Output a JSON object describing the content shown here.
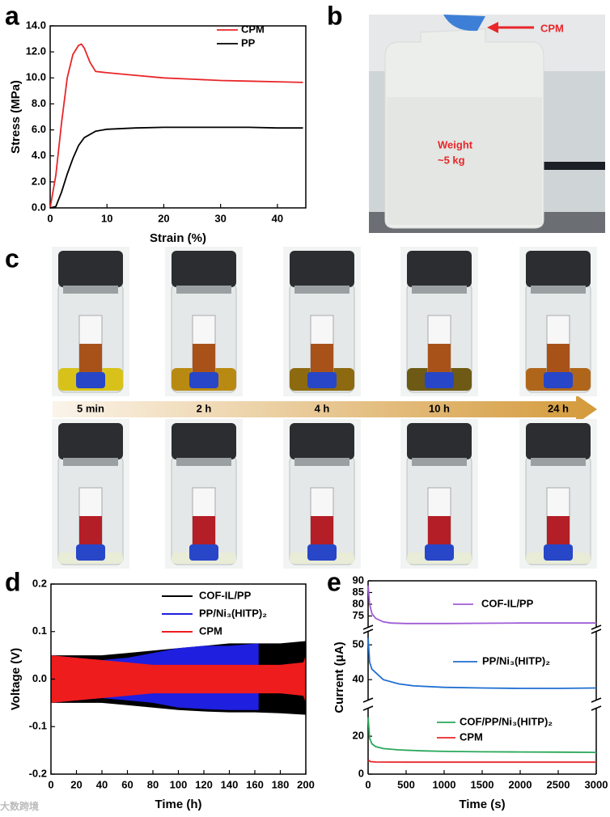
{
  "panel_labels": [
    "a",
    "b",
    "c",
    "d",
    "e"
  ],
  "photo_b": {
    "arrow_label": "CPM",
    "weight_label": [
      "Weight",
      "~5 kg"
    ]
  },
  "photo_c": {
    "times": [
      "5 min",
      "2 h",
      "4 h",
      "10 h",
      "24 h"
    ]
  },
  "watermark": "大数跨境",
  "chart_data": [
    {
      "type": "line",
      "xlabel": "Strain (%)",
      "ylabel": "Stress (MPa)",
      "xlim": [
        0,
        45
      ],
      "xticks": [
        0,
        10,
        20,
        30,
        40
      ],
      "ylim": [
        0,
        14
      ],
      "yticks": [
        {
          "value": 0,
          "label": "0.0"
        },
        {
          "value": 2,
          "label": "2.0"
        },
        {
          "value": 4,
          "label": "4.0"
        },
        {
          "value": 6,
          "label": "6.0"
        },
        {
          "value": 8,
          "label": "8.0"
        },
        {
          "value": 10,
          "label": "10.0"
        },
        {
          "value": 12,
          "label": "12.0"
        },
        {
          "value": 14,
          "label": "14.0"
        }
      ],
      "legend": "upper right",
      "series": [
        {
          "name": "CPM",
          "color": "#e8262a",
          "x": [
            0,
            1,
            2,
            3,
            4,
            5,
            5.5,
            6,
            7,
            8,
            10,
            15,
            20,
            25,
            30,
            35,
            40,
            44.5
          ],
          "values": [
            0,
            2.5,
            6.5,
            10,
            11.8,
            12.5,
            12.6,
            12.3,
            11.2,
            10.5,
            10.4,
            10.2,
            10.0,
            9.9,
            9.8,
            9.75,
            9.7,
            9.65
          ]
        },
        {
          "name": "PP",
          "color": "#000000",
          "x": [
            0,
            1,
            2,
            3,
            4,
            5,
            6,
            8,
            10,
            15,
            20,
            25,
            30,
            35,
            40,
            44.5
          ],
          "values": [
            0,
            0.1,
            1.2,
            2.6,
            3.8,
            4.8,
            5.4,
            5.9,
            6.05,
            6.15,
            6.2,
            6.2,
            6.2,
            6.2,
            6.15,
            6.15
          ]
        }
      ]
    },
    {
      "type": "envelope",
      "xlabel": "Time (h)",
      "ylabel": "Voltage (V)",
      "xlim": [
        0,
        200
      ],
      "xticks": [
        0,
        20,
        40,
        60,
        80,
        100,
        120,
        140,
        160,
        180,
        200
      ],
      "ylim": [
        -0.2,
        0.2
      ],
      "yticks": [
        -0.2,
        -0.1,
        {
          "value": 0,
          "label": "0.0"
        },
        0.1,
        0.2
      ],
      "legend": "upper center",
      "series": [
        {
          "name": "COF-IL/PP",
          "color": "#000000",
          "x": [
            0,
            20,
            40,
            60,
            80,
            100,
            120,
            140,
            160,
            180,
            200
          ],
          "upper": [
            0.05,
            0.05,
            0.05,
            0.055,
            0.06,
            0.065,
            0.07,
            0.075,
            0.075,
            0.075,
            0.08
          ],
          "lower": [
            -0.05,
            -0.05,
            -0.05,
            -0.055,
            -0.06,
            -0.065,
            -0.068,
            -0.07,
            -0.07,
            -0.072,
            -0.075
          ]
        },
        {
          "name": "PP/Ni₃(HITP)₂",
          "color": "#1f1fe0",
          "x": [
            0,
            20,
            40,
            60,
            80,
            100,
            120,
            140,
            163
          ],
          "upper": [
            0.05,
            0.045,
            0.04,
            0.045,
            0.055,
            0.065,
            0.07,
            0.07,
            0.075
          ],
          "lower": [
            -0.05,
            -0.045,
            -0.04,
            -0.045,
            -0.05,
            -0.06,
            -0.063,
            -0.065,
            -0.065
          ]
        },
        {
          "name": "CPM",
          "color": "#ee1c1c",
          "x": [
            0,
            20,
            40,
            60,
            80,
            100,
            120,
            140,
            160,
            180,
            198,
            200
          ],
          "upper": [
            0.05,
            0.045,
            0.04,
            0.035,
            0.03,
            0.03,
            0.03,
            0.03,
            0.03,
            0.03,
            0.035,
            0.05
          ],
          "lower": [
            -0.05,
            -0.045,
            -0.04,
            -0.035,
            -0.03,
            -0.03,
            -0.03,
            -0.03,
            -0.03,
            -0.03,
            -0.035,
            -0.05
          ]
        }
      ]
    },
    {
      "type": "broken-line",
      "xlabel": "Time (s)",
      "ylabel": "Current (μA)",
      "xlim": [
        0,
        3000
      ],
      "xticks": [
        0,
        500,
        1000,
        1500,
        2000,
        2500,
        3000
      ],
      "ylim_segments": [
        [
          0,
          35
        ],
        [
          34,
          54
        ],
        [
          70,
          90
        ]
      ],
      "yticks": [
        0,
        20,
        40,
        50,
        75,
        80,
        85,
        90
      ],
      "series": [
        {
          "name": "COF-IL/PP",
          "color": "#a05bd6",
          "x": [
            0,
            20,
            50,
            100,
            200,
            300,
            500,
            1000,
            1500,
            2000,
            2500,
            3000
          ],
          "values": [
            88,
            80,
            76,
            74,
            72.5,
            72,
            71.8,
            71.8,
            71.9,
            72,
            72,
            72
          ]
        },
        {
          "name": "PP/Ni₃(HITP)₂",
          "color": "#1f6fd1",
          "x": [
            0,
            20,
            50,
            100,
            200,
            400,
            600,
            1000,
            1500,
            2000,
            2500,
            3000
          ],
          "values": [
            52,
            45,
            43,
            42,
            40,
            38.8,
            38.2,
            37.8,
            37.6,
            37.5,
            37.5,
            37.6
          ]
        },
        {
          "name": "COF/PP/Ni₃(HITP)₂",
          "color": "#2aa85a",
          "x": [
            0,
            20,
            50,
            100,
            200,
            400,
            700,
            1000,
            1500,
            2000,
            2500,
            3000
          ],
          "values": [
            30,
            19,
            16,
            14.5,
            13.5,
            12.8,
            12.3,
            12,
            11.8,
            11.7,
            11.6,
            11.5
          ]
        },
        {
          "name": "CPM",
          "color": "#e8262a",
          "x": [
            0,
            30,
            100,
            500,
            1000,
            2000,
            3000
          ],
          "values": [
            7.5,
            6.6,
            6.4,
            6.3,
            6.3,
            6.3,
            6.3
          ]
        }
      ]
    }
  ]
}
